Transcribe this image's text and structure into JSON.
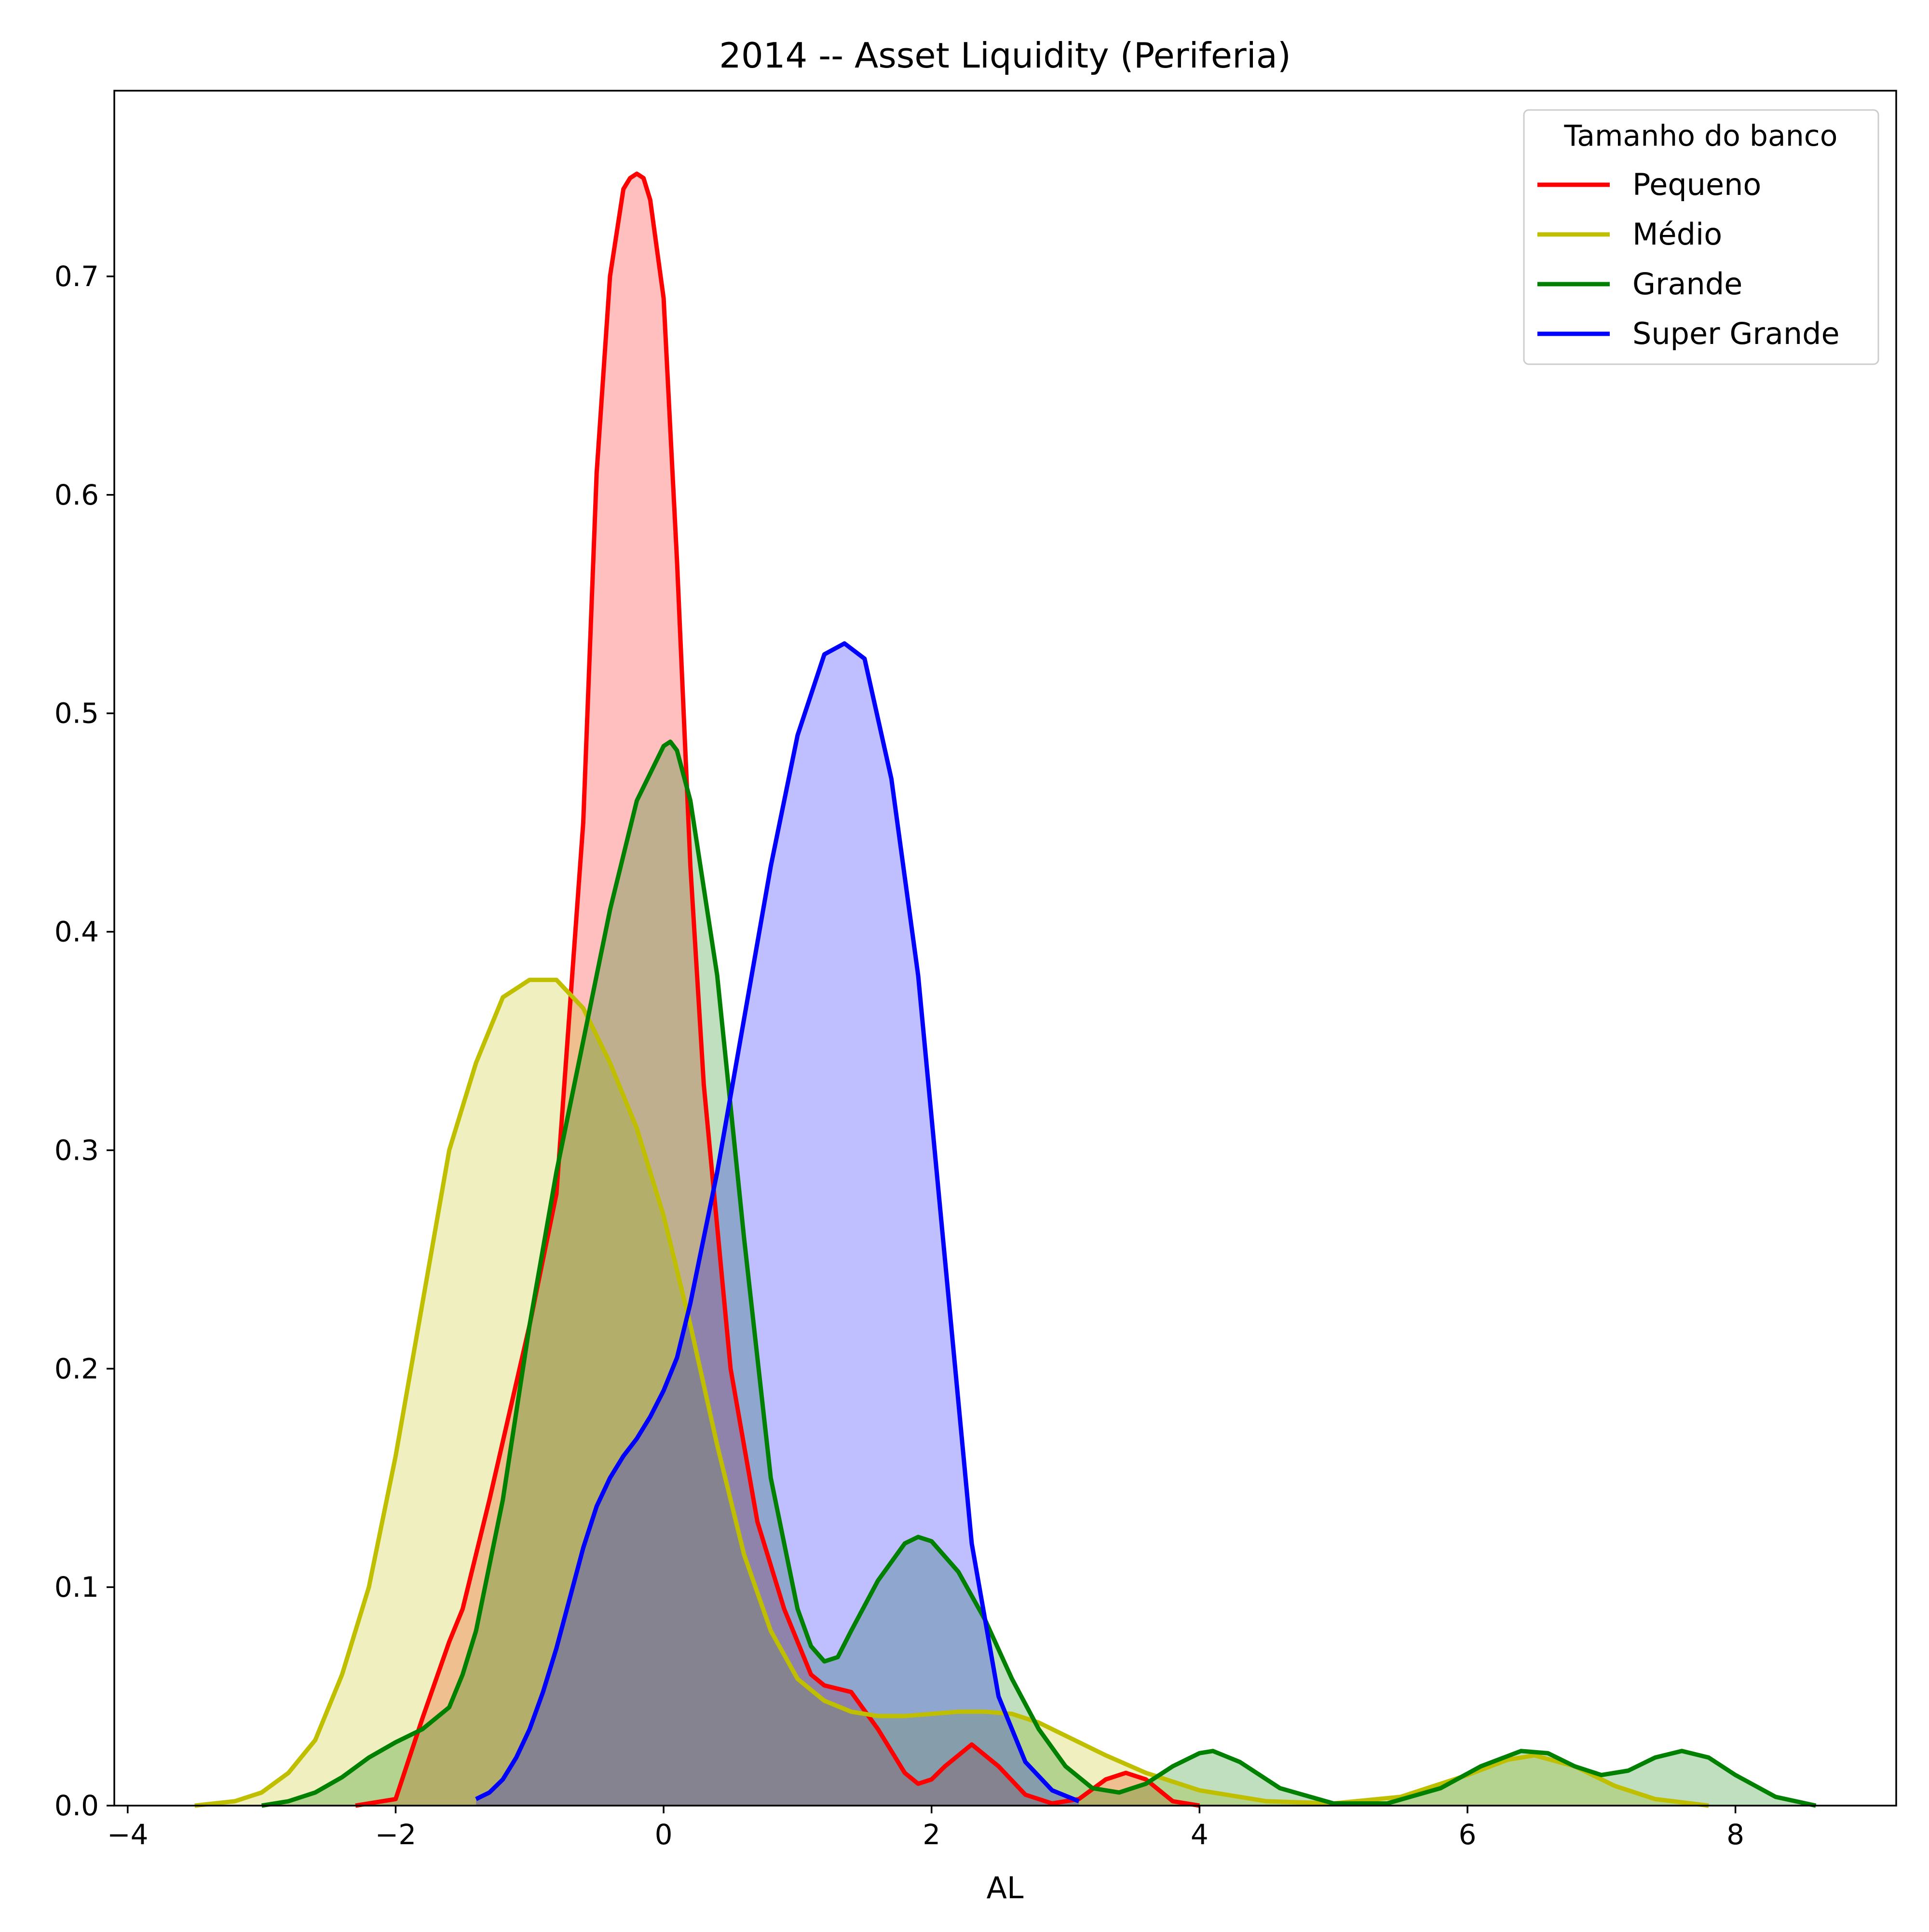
{
  "chart_data": {
    "type": "area",
    "title": "2014 -- Asset Liquidity (Periferia)",
    "xlabel": "AL",
    "ylabel": "",
    "xlim": [
      -4.1,
      9.2
    ],
    "ylim": [
      0,
      0.785
    ],
    "x_ticks": [
      -4,
      -2,
      0,
      2,
      4,
      6,
      8
    ],
    "x_tick_labels": [
      "−4",
      "−2",
      "0",
      "2",
      "4",
      "6",
      "8"
    ],
    "y_ticks": [
      0.0,
      0.1,
      0.2,
      0.3,
      0.4,
      0.5,
      0.6,
      0.7
    ],
    "y_tick_labels": [
      "0.0",
      "0.1",
      "0.2",
      "0.3",
      "0.4",
      "0.5",
      "0.6",
      "0.7"
    ],
    "grid": false,
    "legend": {
      "title": "Tamanho do banco",
      "position": "top-right"
    },
    "series": [
      {
        "name": "Pequeno",
        "color": "#ff0000",
        "fill": "#ffbcbc",
        "x": [
          -2.3,
          -2.0,
          -1.8,
          -1.6,
          -1.5,
          -1.3,
          -1.0,
          -0.8,
          -0.6,
          -0.5,
          -0.4,
          -0.3,
          -0.25,
          -0.2,
          -0.15,
          -0.1,
          0.0,
          0.1,
          0.2,
          0.3,
          0.5,
          0.7,
          0.9,
          1.1,
          1.2,
          1.4,
          1.6,
          1.8,
          1.9,
          2.0,
          2.1,
          2.3,
          2.5,
          2.7,
          2.9,
          3.1,
          3.3,
          3.45,
          3.6,
          3.8,
          4.0
        ],
        "y": [
          0.0,
          0.003,
          0.04,
          0.075,
          0.09,
          0.14,
          0.22,
          0.28,
          0.45,
          0.61,
          0.7,
          0.74,
          0.745,
          0.747,
          0.745,
          0.735,
          0.69,
          0.57,
          0.43,
          0.33,
          0.2,
          0.13,
          0.09,
          0.06,
          0.055,
          0.052,
          0.035,
          0.015,
          0.01,
          0.012,
          0.018,
          0.028,
          0.018,
          0.005,
          0.001,
          0.003,
          0.012,
          0.015,
          0.012,
          0.002,
          0.0
        ]
      },
      {
        "name": "Médio",
        "color": "#bfbf00",
        "fill": "#eeeebf",
        "x": [
          -3.5,
          -3.2,
          -3.0,
          -2.8,
          -2.6,
          -2.4,
          -2.2,
          -2.0,
          -1.8,
          -1.6,
          -1.4,
          -1.2,
          -1.0,
          -0.8,
          -0.6,
          -0.4,
          -0.2,
          0.0,
          0.2,
          0.4,
          0.6,
          0.8,
          1.0,
          1.2,
          1.4,
          1.6,
          1.8,
          2.0,
          2.2,
          2.4,
          2.6,
          2.8,
          3.0,
          3.3,
          3.6,
          4.0,
          4.5,
          5.0,
          5.5,
          6.0,
          6.3,
          6.5,
          6.8,
          7.1,
          7.4,
          7.8
        ],
        "y": [
          0.0,
          0.002,
          0.006,
          0.015,
          0.03,
          0.06,
          0.1,
          0.16,
          0.23,
          0.3,
          0.34,
          0.37,
          0.378,
          0.378,
          0.365,
          0.34,
          0.31,
          0.27,
          0.22,
          0.165,
          0.115,
          0.08,
          0.058,
          0.048,
          0.043,
          0.041,
          0.041,
          0.042,
          0.043,
          0.043,
          0.042,
          0.038,
          0.032,
          0.023,
          0.015,
          0.007,
          0.002,
          0.001,
          0.004,
          0.014,
          0.021,
          0.023,
          0.018,
          0.009,
          0.003,
          0.0
        ]
      },
      {
        "name": "Grande",
        "color": "#008000",
        "fill": "#bfdfbf",
        "x": [
          -3.0,
          -2.8,
          -2.6,
          -2.4,
          -2.2,
          -2.0,
          -1.8,
          -1.6,
          -1.5,
          -1.4,
          -1.2,
          -1.0,
          -0.8,
          -0.6,
          -0.4,
          -0.2,
          0.0,
          0.05,
          0.1,
          0.2,
          0.4,
          0.6,
          0.8,
          1.0,
          1.1,
          1.2,
          1.3,
          1.4,
          1.6,
          1.8,
          1.9,
          2.0,
          2.2,
          2.4,
          2.6,
          2.8,
          3.0,
          3.2,
          3.4,
          3.6,
          3.8,
          4.0,
          4.1,
          4.3,
          4.6,
          5.0,
          5.4,
          5.8,
          6.1,
          6.4,
          6.6,
          6.8,
          7.0,
          7.2,
          7.4,
          7.6,
          7.8,
          8.0,
          8.3,
          8.6
        ],
        "y": [
          0.0,
          0.002,
          0.006,
          0.013,
          0.022,
          0.029,
          0.035,
          0.045,
          0.06,
          0.08,
          0.14,
          0.22,
          0.29,
          0.35,
          0.41,
          0.46,
          0.485,
          0.487,
          0.483,
          0.46,
          0.38,
          0.26,
          0.15,
          0.09,
          0.073,
          0.066,
          0.068,
          0.08,
          0.103,
          0.12,
          0.123,
          0.121,
          0.107,
          0.085,
          0.058,
          0.035,
          0.018,
          0.008,
          0.006,
          0.01,
          0.018,
          0.024,
          0.025,
          0.02,
          0.008,
          0.001,
          0.001,
          0.008,
          0.018,
          0.025,
          0.024,
          0.018,
          0.014,
          0.016,
          0.022,
          0.025,
          0.022,
          0.014,
          0.004,
          0.0
        ]
      },
      {
        "name": "Super Grande",
        "color": "#0000ff",
        "fill": "#bcbcff",
        "x": [
          -1.4,
          -1.3,
          -1.2,
          -1.1,
          -1.0,
          -0.9,
          -0.8,
          -0.7,
          -0.6,
          -0.5,
          -0.4,
          -0.3,
          -0.2,
          -0.1,
          0.0,
          0.1,
          0.2,
          0.4,
          0.6,
          0.8,
          1.0,
          1.2,
          1.35,
          1.5,
          1.7,
          1.9,
          2.1,
          2.3,
          2.5,
          2.7,
          2.9,
          3.1
        ],
        "y": [
          0.003,
          0.006,
          0.012,
          0.022,
          0.035,
          0.052,
          0.072,
          0.095,
          0.118,
          0.137,
          0.15,
          0.16,
          0.168,
          0.178,
          0.19,
          0.205,
          0.23,
          0.29,
          0.36,
          0.43,
          0.49,
          0.527,
          0.532,
          0.525,
          0.47,
          0.38,
          0.25,
          0.12,
          0.05,
          0.02,
          0.007,
          0.002
        ]
      }
    ]
  }
}
